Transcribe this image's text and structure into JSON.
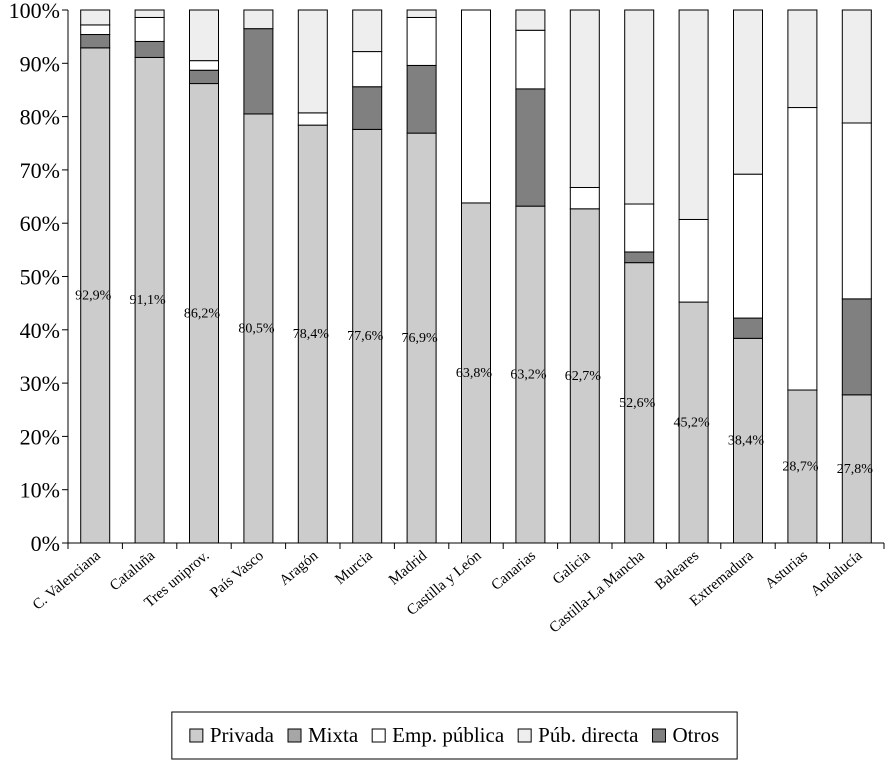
{
  "chart_data": {
    "type": "bar",
    "stacked": true,
    "normalized": true,
    "categories": [
      "C. Valenciana",
      "Cataluña",
      "Tres uniprov.",
      "País Vasco",
      "Aragón",
      "Murcia",
      "Madrid",
      "Castilla y León",
      "Canarias",
      "Galicia",
      "Castilla-La Mancha",
      "Baleares",
      "Extremadura",
      "Asturias",
      "Andalucía"
    ],
    "series": [
      {
        "name": "Privada",
        "color": "#cccccc",
        "values": [
          92.9,
          91.1,
          86.2,
          80.5,
          78.4,
          77.6,
          76.9,
          63.8,
          63.2,
          62.7,
          52.6,
          45.2,
          38.4,
          28.7,
          27.8
        ]
      },
      {
        "name": "Mixta",
        "color": "#a6a6a6",
        "values": [
          0,
          0,
          0,
          0,
          0,
          0,
          0,
          0,
          0,
          0,
          0,
          0,
          0,
          0,
          0
        ]
      },
      {
        "name": "Otros",
        "color": "#808080",
        "values": [
          2.5,
          3.0,
          2.5,
          16.0,
          0,
          8.0,
          12.7,
          0,
          22.0,
          0,
          2.0,
          0,
          3.8,
          0,
          18.0
        ]
      },
      {
        "name": "Emp. pública",
        "color": "#ffffff",
        "values": [
          1.8,
          4.5,
          1.8,
          0,
          2.3,
          6.6,
          9.0,
          36.2,
          11.0,
          4.0,
          9.0,
          15.5,
          27.0,
          53.0,
          33.0
        ]
      },
      {
        "name": "Púb. directa",
        "color": "#eeeeee",
        "values": [
          2.8,
          1.4,
          9.5,
          3.5,
          19.3,
          7.8,
          1.4,
          0,
          3.8,
          33.3,
          36.4,
          39.3,
          30.8,
          18.3,
          21.2
        ]
      }
    ],
    "data_labels": [
      "92,9%",
      "91,1%",
      "86,2%",
      "80,5%",
      "78,4%",
      "77,6%",
      "76,9%",
      "63,8%",
      "63,2%",
      "62,7%",
      "52,6%",
      "45,2%",
      "38,4%",
      "28,7%",
      "27,8%"
    ],
    "y_ticks": [
      "0%",
      "10%",
      "20%",
      "30%",
      "40%",
      "50%",
      "60%",
      "70%",
      "80%",
      "90%",
      "100%"
    ],
    "ylim": [
      0,
      100
    ],
    "grid": false,
    "legend": {
      "placement": "bottom",
      "order": [
        "Privada",
        "Mixta",
        "Emp. pública",
        "Púb. directa",
        "Otros"
      ]
    },
    "title": "",
    "xlabel": "",
    "ylabel": ""
  }
}
